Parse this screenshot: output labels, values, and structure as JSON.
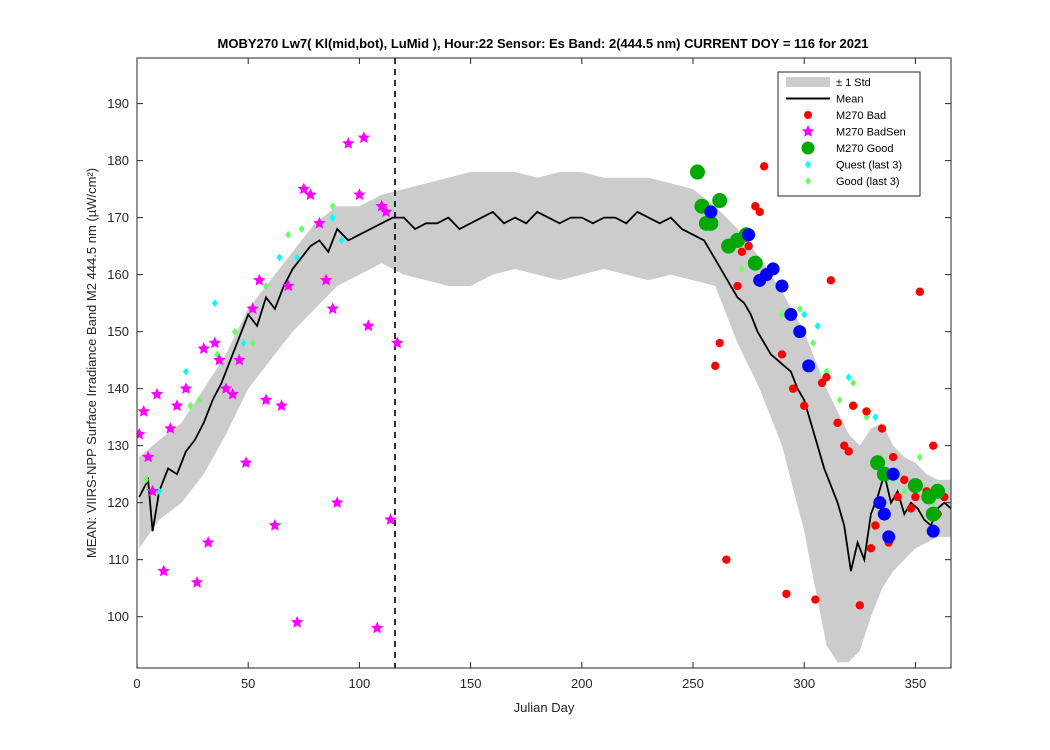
{
  "chart_data": {
    "type": "line",
    "title": "MOBY270   Lw7( Kl(mid,bot), LuMid ),   Hour:22 Sensor: Es Band: 2(444.5 nm)   CURRENT DOY = 116 for 2021",
    "xlabel": "Julian Day",
    "ylabel": "MEAN: VIIRS-NPP Surface Irradiance Band M2 444.5 nm (µW/cm²)",
    "xlim": [
      0,
      366
    ],
    "ylim": [
      91,
      198
    ],
    "xticks": [
      0,
      50,
      100,
      150,
      200,
      250,
      300,
      350
    ],
    "yticks": [
      100,
      110,
      120,
      130,
      140,
      150,
      160,
      170,
      180,
      190
    ],
    "current_doy": 116,
    "grid": false,
    "legend_position": "top-right",
    "colors": {
      "std_band": "#cccccc",
      "mean": "#000000",
      "bad": "#ff0000",
      "badsen": "#ff00ff",
      "good": "#00aa00",
      "quest": "#00ffff",
      "good_last3": "#66ff66",
      "blue": "#0000ff"
    },
    "legend": [
      {
        "key": "std",
        "label": "± 1 Std"
      },
      {
        "key": "mean",
        "label": "Mean"
      },
      {
        "key": "bad",
        "label": "M270 Bad"
      },
      {
        "key": "badsen",
        "label": "M270 BadSen"
      },
      {
        "key": "good",
        "label": "M270 Good"
      },
      {
        "key": "quest",
        "label": "Quest (last 3)"
      },
      {
        "key": "good_last3",
        "label": "Good (last 3)"
      }
    ],
    "mean_series": {
      "x": [
        1,
        5,
        7,
        10,
        14,
        18,
        22,
        26,
        30,
        34,
        38,
        42,
        46,
        50,
        54,
        58,
        62,
        66,
        70,
        74,
        78,
        82,
        86,
        90,
        95,
        100,
        105,
        110,
        115,
        120,
        125,
        130,
        135,
        140,
        145,
        150,
        155,
        160,
        165,
        170,
        175,
        180,
        185,
        190,
        195,
        200,
        205,
        210,
        215,
        220,
        225,
        230,
        235,
        240,
        245,
        250,
        255,
        258,
        261,
        264,
        267,
        270,
        273,
        276,
        279,
        282,
        285,
        288,
        291,
        294,
        297,
        300,
        303,
        306,
        309,
        312,
        315,
        318,
        321,
        324,
        327,
        330,
        333,
        336,
        339,
        342,
        345,
        348,
        351,
        354,
        357,
        360,
        363,
        366
      ],
      "y": [
        121,
        124,
        115,
        122,
        126,
        125,
        129,
        131,
        134,
        138,
        141,
        145,
        149,
        153,
        151,
        156,
        154,
        158,
        161,
        163,
        165,
        166,
        164,
        168,
        166,
        167,
        168,
        169,
        170,
        170,
        168,
        169,
        169,
        170,
        168,
        169,
        170,
        171,
        169,
        170,
        169,
        171,
        170,
        169,
        170,
        170,
        169,
        170,
        170,
        169,
        171,
        170,
        169,
        170,
        168,
        167,
        166,
        164,
        162,
        160,
        158,
        156,
        155,
        153,
        150,
        148,
        146,
        145,
        144,
        143,
        140,
        138,
        134,
        130,
        126,
        123,
        120,
        116,
        108,
        113,
        110,
        118,
        121,
        125,
        120,
        122,
        118,
        120,
        119,
        117,
        116,
        119,
        120,
        119
      ]
    },
    "std_upper": {
      "x": [
        1,
        10,
        20,
        30,
        40,
        50,
        60,
        70,
        80,
        90,
        100,
        110,
        120,
        130,
        140,
        150,
        160,
        170,
        180,
        190,
        200,
        210,
        220,
        230,
        240,
        250,
        260,
        270,
        280,
        290,
        300,
        305,
        310,
        315,
        320,
        325,
        330,
        335,
        340,
        345,
        350,
        355,
        360,
        366
      ],
      "y": [
        128,
        131,
        134,
        140,
        146,
        154,
        159,
        164,
        169,
        172,
        172,
        174,
        175,
        176,
        177,
        178,
        178,
        178,
        177,
        178,
        178,
        177,
        177,
        177,
        176,
        175,
        172,
        168,
        163,
        157,
        150,
        145,
        140,
        136,
        132,
        130,
        133,
        134,
        130,
        128,
        127,
        125,
        124,
        124
      ]
    },
    "std_lower": {
      "x": [
        1,
        10,
        20,
        30,
        40,
        50,
        60,
        70,
        80,
        90,
        100,
        110,
        120,
        130,
        140,
        150,
        160,
        170,
        180,
        190,
        200,
        210,
        220,
        230,
        240,
        250,
        260,
        270,
        280,
        290,
        300,
        305,
        310,
        315,
        320,
        325,
        330,
        335,
        340,
        345,
        350,
        355,
        360,
        366
      ],
      "y": [
        112,
        117,
        120,
        125,
        132,
        140,
        145,
        150,
        154,
        158,
        160,
        162,
        160,
        159,
        158,
        158,
        160,
        161,
        160,
        159,
        160,
        161,
        160,
        159,
        160,
        159,
        158,
        148,
        140,
        130,
        115,
        105,
        95,
        92,
        92,
        94,
        100,
        105,
        108,
        110,
        112,
        113,
        114,
        114
      ]
    },
    "points": {
      "bad": {
        "x": [
          260,
          262,
          265,
          270,
          272,
          275,
          278,
          280,
          282,
          290,
          292,
          295,
          300,
          302,
          305,
          308,
          310,
          312,
          315,
          318,
          320,
          322,
          325,
          328,
          330,
          332,
          335,
          338,
          340,
          342,
          345,
          348,
          350,
          352,
          355,
          358,
          360,
          363
        ],
        "y": [
          144,
          148,
          110,
          158,
          164,
          165,
          172,
          171,
          179,
          146,
          104,
          140,
          137,
          144,
          103,
          141,
          142,
          159,
          134,
          130,
          129,
          137,
          102,
          136,
          112,
          116,
          133,
          113,
          128,
          121,
          124,
          119,
          121,
          157,
          122,
          130,
          118,
          121
        ]
      },
      "badsen": {
        "x": [
          1,
          3,
          5,
          7,
          9,
          12,
          15,
          18,
          22,
          27,
          30,
          32,
          35,
          37,
          40,
          43,
          46,
          49,
          52,
          55,
          58,
          62,
          65,
          68,
          72,
          75,
          78,
          82,
          85,
          88,
          90,
          95,
          100,
          102,
          104,
          108,
          110,
          112,
          114,
          117
        ],
        "y": [
          132,
          136,
          128,
          122,
          139,
          108,
          133,
          137,
          140,
          106,
          147,
          113,
          148,
          145,
          140,
          139,
          145,
          127,
          154,
          159,
          138,
          116,
          137,
          158,
          99,
          175,
          174,
          169,
          159,
          154,
          120,
          183,
          174,
          184,
          151,
          98,
          172,
          171,
          117,
          148
        ]
      },
      "good": {
        "x": [
          252,
          254,
          256,
          258,
          262,
          266,
          270,
          274,
          278,
          333,
          336,
          350,
          356,
          358,
          360
        ],
        "y": [
          178,
          172,
          169,
          169,
          173,
          165,
          166,
          167,
          162,
          127,
          125,
          123,
          121,
          118,
          122
        ]
      },
      "blue": {
        "x": [
          258,
          275,
          280,
          283,
          286,
          290,
          294,
          298,
          302,
          334,
          336,
          338,
          340,
          358
        ],
        "y": [
          171,
          167,
          159,
          160,
          161,
          158,
          153,
          150,
          144,
          120,
          118,
          114,
          125,
          115
        ]
      },
      "quest": {
        "x": [
          10,
          22,
          35,
          48,
          64,
          72,
          88,
          92,
          276,
          300,
          306,
          320,
          332
        ],
        "y": [
          122,
          143,
          155,
          148,
          163,
          163,
          170,
          166,
          165,
          153,
          151,
          142,
          135
        ]
      },
      "good_last3": {
        "x": [
          4,
          15,
          24,
          28,
          36,
          44,
          52,
          58,
          68,
          74,
          82,
          88,
          272,
          290,
          298,
          304,
          310,
          316,
          322,
          328,
          335,
          340,
          345,
          352,
          358
        ],
        "y": [
          124,
          133,
          137,
          138,
          146,
          150,
          148,
          158,
          167,
          168,
          169,
          172,
          161,
          153,
          154,
          148,
          143,
          138,
          141,
          135,
          127,
          124,
          122,
          128,
          120
        ]
      }
    }
  }
}
